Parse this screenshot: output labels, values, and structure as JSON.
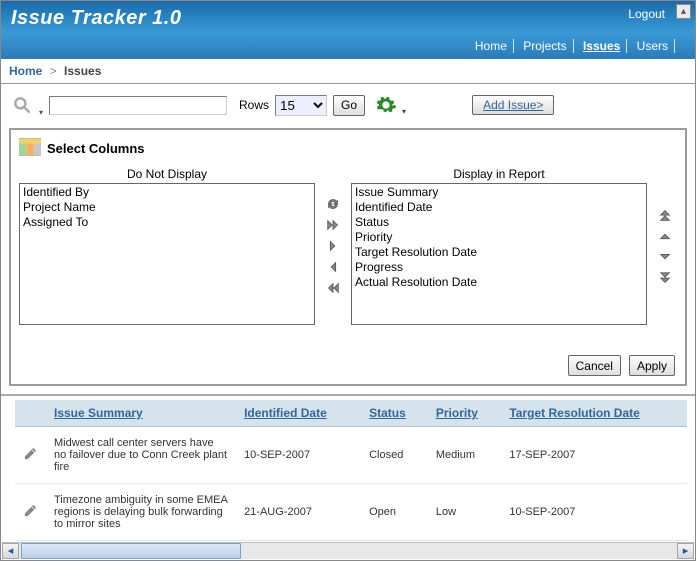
{
  "app": {
    "title": "Issue Tracker 1.0"
  },
  "top_links": {
    "logout": "Logout"
  },
  "nav": {
    "items": [
      "Home",
      "Projects",
      "Issues",
      "Users"
    ],
    "active": "Issues"
  },
  "breadcrumb": {
    "root": "Home",
    "sep": ">",
    "current": "Issues"
  },
  "toolbar": {
    "rows_label": "Rows",
    "rows_value": "15",
    "go_label": "Go",
    "add_issue_label": "Add Issue>"
  },
  "select_columns": {
    "title": "Select Columns",
    "left_label": "Do Not Display",
    "right_label": "Display in Report",
    "left_items": [
      "Identified By",
      "Project Name",
      "Assigned To"
    ],
    "right_items": [
      "Issue Summary",
      "Identified Date",
      "Status",
      "Priority",
      "Target Resolution Date",
      "Progress",
      "Actual Resolution Date"
    ],
    "cancel_label": "Cancel",
    "apply_label": "Apply"
  },
  "table": {
    "columns": [
      "Issue Summary",
      "Identified Date",
      "Status",
      "Priority",
      "Target Resolution Date"
    ],
    "rows": [
      {
        "summary": "Midwest call center servers have no failover due to Conn Creek plant fire",
        "identified": "10-SEP-2007",
        "status": "Closed",
        "priority": "Medium",
        "target": "17-SEP-2007"
      },
      {
        "summary": "Timezone ambiguity in some EMEA regions is delaying bulk forwarding to mirror sites",
        "identified": "21-AUG-2007",
        "status": "Open",
        "priority": "Low",
        "target": "10-SEP-2007"
      }
    ]
  },
  "colors": {
    "header_gradient": [
      "#1a6aa8",
      "#3a9ad6"
    ],
    "link": "#336699",
    "table_header_bg": "#d5e4ec"
  }
}
